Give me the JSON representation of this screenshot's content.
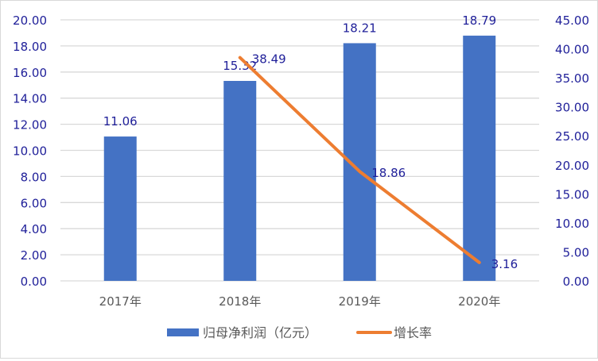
{
  "chart_data": {
    "type": "bar+line",
    "categories": [
      "2017年",
      "2018年",
      "2019年",
      "2020年"
    ],
    "series": [
      {
        "name": "归母净利润（亿元）",
        "type": "bar",
        "axis": "left",
        "color": "#4472C4",
        "values": [
          11.06,
          15.32,
          18.21,
          18.79
        ],
        "labels": [
          "11.06",
          "15.32",
          "18.21",
          "18.79"
        ]
      },
      {
        "name": "增长率",
        "type": "line",
        "axis": "right",
        "color": "#ED7D31",
        "values": [
          null,
          38.49,
          18.86,
          3.16
        ],
        "labels": [
          "",
          "38.49",
          "18.86",
          "3.16"
        ]
      }
    ],
    "left_axis": {
      "min": 0,
      "max": 20,
      "step": 2,
      "ticks": [
        "0.00",
        "2.00",
        "4.00",
        "6.00",
        "8.00",
        "10.00",
        "12.00",
        "14.00",
        "16.00",
        "18.00",
        "20.00"
      ]
    },
    "right_axis": {
      "min": 0,
      "max": 45,
      "step": 5,
      "ticks": [
        "0.00",
        "5.00",
        "10.00",
        "15.00",
        "20.00",
        "25.00",
        "30.00",
        "35.00",
        "40.00",
        "45.00"
      ]
    },
    "title": "",
    "xlabel": "",
    "ylabel": "",
    "grid": true,
    "legend_position": "bottom",
    "colors": {
      "axis_text": "#1F1F99",
      "category_text": "#595959",
      "gridline": "#D9D9D9",
      "data_label": "#1F1F99"
    }
  },
  "legend": {
    "items": [
      {
        "label": "归母净利润（亿元）",
        "color": "#4472C4"
      },
      {
        "label": "增长率",
        "color": "#ED7D31"
      }
    ]
  }
}
